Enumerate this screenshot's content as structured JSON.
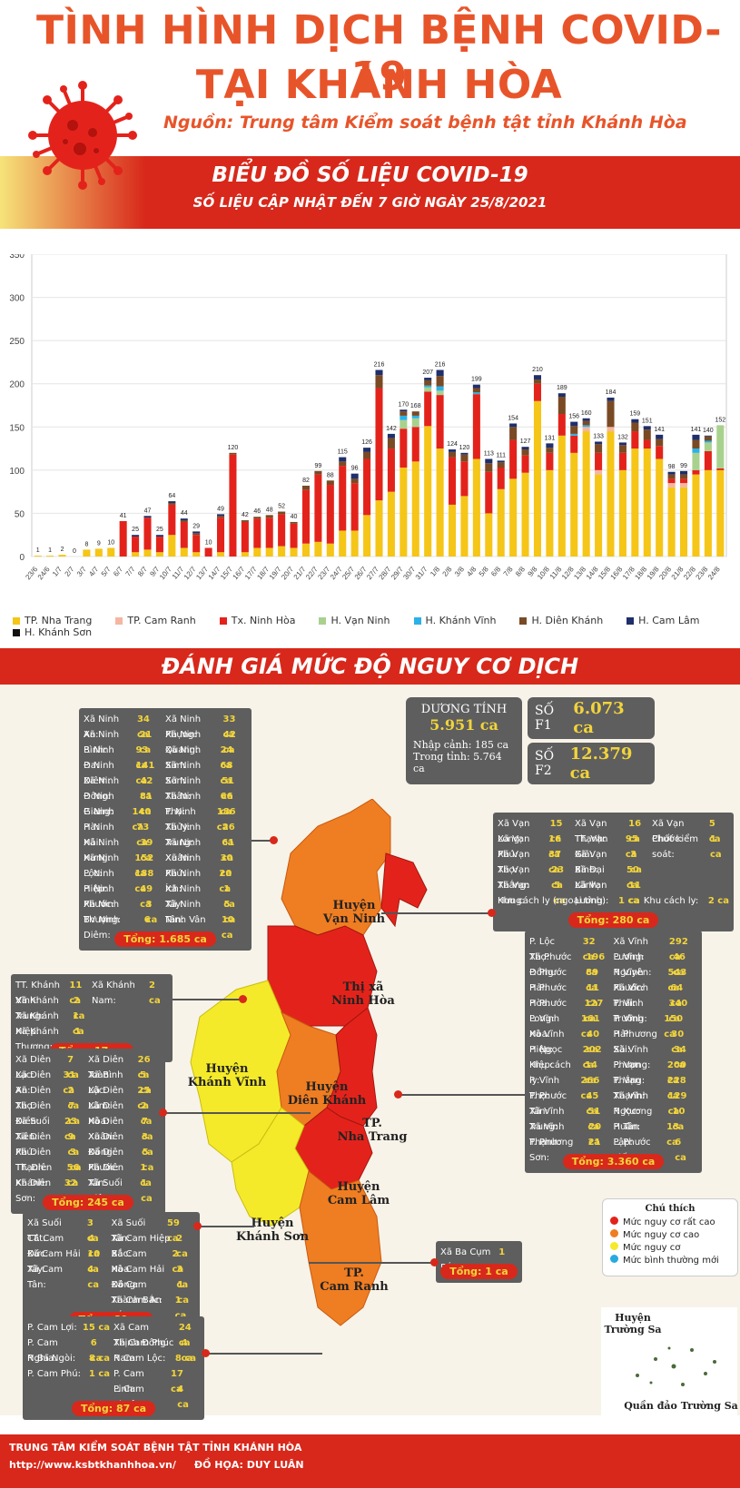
{
  "header": {
    "title_line1": "TÌNH HÌNH DỊCH BỆNH COVID-19",
    "title_line2": "TẠI KHÁNH HÒA",
    "source": "Nguồn: Trung tâm Kiểm soát bệnh tật tỉnh Khánh Hòa",
    "chart_title": "BIỂU ĐỒ SỐ LIỆU COVID-19",
    "chart_subtitle": "SỐ LIỆU CẬP NHẬT ĐẾN 7 GIỜ NGÀY 25/8/2021"
  },
  "colors": {
    "nha_trang": "#f5c518",
    "cam_ranh": "#f4b6a0",
    "ninh_hoa": "#e3231b",
    "van_ninh": "#a9d18e",
    "khanh_vinh": "#2ab1e8",
    "dien_khanh": "#7a4a24",
    "cam_lam": "#1f2f6b",
    "khanh_son": "#111111",
    "very_high": "#e3231b",
    "high": "#ef7d22",
    "risk": "#f4ea2a",
    "normal": "#2aa9e0"
  },
  "chart_data": {
    "type": "bar",
    "stacked": true,
    "ylim": [
      0,
      350
    ],
    "yticks": [
      0,
      50,
      100,
      150,
      200,
      250,
      300,
      350
    ],
    "grid": true,
    "legend_position": "bottom",
    "categories": [
      "23/6",
      "24/6",
      "1/7",
      "2/7",
      "3/7",
      "4/7",
      "5/7",
      "6/7",
      "7/7",
      "8/7",
      "9/7",
      "10/7",
      "11/7",
      "12/7",
      "13/7",
      "14/7",
      "15/7",
      "16/7",
      "17/7",
      "18/7",
      "19/7",
      "20/7",
      "21/7",
      "22/7",
      "23/7",
      "24/7",
      "25/7",
      "26/7",
      "27/7",
      "28/7",
      "29/7",
      "30/7",
      "31/7",
      "1/8",
      "2/8",
      "3/8",
      "4/8",
      "5/8",
      "6/8",
      "7/8",
      "8/8",
      "9/8",
      "10/8",
      "11/8",
      "12/8",
      "13/8",
      "14/8",
      "15/8",
      "16/8",
      "17/8",
      "18/8",
      "19/8",
      "20/8",
      "21/8",
      "22/8",
      "23/8",
      "24/8"
    ],
    "totals": [
      1,
      1,
      2,
      0,
      8,
      9,
      10,
      41,
      25,
      47,
      25,
      64,
      44,
      29,
      10,
      49,
      120,
      42,
      46,
      48,
      52,
      40,
      82,
      99,
      88,
      115,
      96,
      126,
      216,
      142,
      170,
      168,
      207,
      216,
      124,
      120,
      199,
      113,
      111,
      154,
      127,
      210,
      131,
      189,
      156,
      160,
      133,
      184,
      132,
      159,
      151,
      141,
      98,
      99,
      141,
      140,
      152
    ],
    "series": [
      {
        "name": "TP. Nha Trang",
        "values": [
          1,
          1,
          2,
          0,
          8,
          9,
          10,
          0,
          5,
          8,
          5,
          25,
          10,
          5,
          0,
          5,
          0,
          5,
          10,
          10,
          12,
          10,
          15,
          17,
          15,
          30,
          30,
          48,
          65,
          75,
          103,
          110,
          151,
          125,
          60,
          70,
          113,
          50,
          78,
          90,
          97,
          180,
          100,
          140,
          120,
          145,
          95,
          145,
          100,
          125,
          125,
          113,
          80,
          80,
          95,
          100,
          100
        ]
      },
      {
        "name": "TP. Cam Ranh",
        "values": [
          0,
          0,
          0,
          0,
          0,
          0,
          0,
          0,
          0,
          0,
          0,
          0,
          0,
          0,
          0,
          0,
          0,
          0,
          0,
          0,
          0,
          0,
          0,
          0,
          0,
          0,
          0,
          0,
          0,
          0,
          0,
          0,
          0,
          0,
          0,
          0,
          0,
          0,
          0,
          0,
          0,
          0,
          0,
          0,
          0,
          5,
          5,
          5,
          0,
          0,
          0,
          0,
          5,
          5,
          0,
          0,
          0
        ]
      },
      {
        "name": "Tx. Ninh Hòa",
        "values": [
          0,
          0,
          0,
          0,
          0,
          0,
          0,
          41,
          18,
          37,
          18,
          35,
          30,
          20,
          10,
          40,
          118,
          35,
          34,
          35,
          37,
          28,
          62,
          78,
          68,
          75,
          55,
          65,
          130,
          50,
          45,
          40,
          40,
          62,
          55,
          40,
          75,
          48,
          25,
          45,
          20,
          20,
          20,
          25,
          20,
          0,
          20,
          0,
          20,
          20,
          10,
          15,
          5,
          5,
          5,
          22,
          2
        ]
      },
      {
        "name": "H. Vạn Ninh",
        "values": [
          0,
          0,
          0,
          0,
          0,
          0,
          0,
          0,
          0,
          0,
          0,
          0,
          0,
          0,
          0,
          0,
          0,
          0,
          0,
          0,
          0,
          0,
          0,
          0,
          0,
          0,
          0,
          0,
          0,
          0,
          10,
          10,
          5,
          5,
          0,
          0,
          0,
          0,
          0,
          0,
          0,
          0,
          0,
          0,
          0,
          0,
          0,
          0,
          0,
          0,
          0,
          0,
          0,
          0,
          20,
          10,
          50
        ]
      },
      {
        "name": "H. Khánh Vĩnh",
        "values": [
          0,
          0,
          0,
          0,
          0,
          0,
          0,
          0,
          0,
          0,
          0,
          0,
          0,
          0,
          0,
          0,
          0,
          0,
          0,
          0,
          0,
          0,
          0,
          0,
          0,
          0,
          0,
          0,
          0,
          0,
          5,
          3,
          2,
          5,
          0,
          0,
          2,
          0,
          0,
          0,
          0,
          0,
          0,
          0,
          2,
          2,
          0,
          0,
          0,
          0,
          0,
          0,
          0,
          0,
          5,
          2,
          0
        ]
      },
      {
        "name": "H. Diên Khánh",
        "values": [
          0,
          0,
          0,
          0,
          0,
          0,
          0,
          0,
          0,
          0,
          0,
          2,
          2,
          2,
          0,
          2,
          2,
          2,
          2,
          3,
          3,
          2,
          5,
          4,
          5,
          5,
          5,
          8,
          15,
          12,
          5,
          5,
          6,
          12,
          6,
          8,
          5,
          10,
          6,
          15,
          7,
          5,
          6,
          20,
          9,
          5,
          10,
          30,
          9,
          10,
          12,
          8,
          5,
          5,
          10,
          5,
          0
        ]
      },
      {
        "name": "H. Cam Lâm",
        "values": [
          0,
          0,
          0,
          0,
          0,
          0,
          0,
          0,
          2,
          2,
          2,
          2,
          2,
          2,
          0,
          2,
          0,
          0,
          0,
          0,
          0,
          0,
          0,
          0,
          0,
          5,
          6,
          5,
          6,
          5,
          2,
          0,
          3,
          7,
          3,
          2,
          4,
          5,
          2,
          4,
          3,
          5,
          5,
          4,
          5,
          3,
          3,
          4,
          3,
          4,
          4,
          5,
          3,
          4,
          6,
          1,
          0
        ]
      },
      {
        "name": "H. Khánh Sơn",
        "values": [
          0,
          0,
          0,
          0,
          0,
          0,
          0,
          0,
          0,
          0,
          0,
          0,
          0,
          0,
          0,
          0,
          0,
          0,
          0,
          0,
          0,
          0,
          0,
          0,
          0,
          0,
          0,
          0,
          0,
          0,
          0,
          0,
          0,
          0,
          0,
          0,
          0,
          0,
          0,
          0,
          0,
          0,
          0,
          0,
          0,
          0,
          0,
          0,
          0,
          0,
          0,
          0,
          0,
          0,
          0,
          0,
          0
        ]
      }
    ]
  },
  "risk": {
    "title": "ĐÁNH GIÁ MỨC ĐỘ NGUY CƠ DỊCH",
    "positive_label": "DƯƠNG TÍNH",
    "positive_value": "5.951 ca",
    "import_label": "Nhập cảnh: 185 ca",
    "domestic_label": "Trong tỉnh: 5.764 ca",
    "f1_label": "SỐ F1",
    "f1_value": "6.073 ca",
    "f2_label": "SỐ F2",
    "f2_value": "12.379 ca"
  },
  "boxes": {
    "ninh_hoa": {
      "rows": [
        [
          "Xã Ninh An:",
          "34 ca",
          "Xã Ninh Phụng:",
          "33 ca"
        ],
        [
          "Xã Ninh Bình:",
          "21 ca",
          "Xã Ninh Quang:",
          "42 ca"
        ],
        [
          "P. Ninh Đa:",
          "93 ca",
          "Xã Ninh Sim:",
          "24 ca"
        ],
        [
          "P. Ninh Diêm:",
          "141 ca",
          "Xã Ninh Sơn:",
          "68 ca"
        ],
        [
          "Xã Ninh Đông:",
          "42 ca",
          "Xã Ninh Thân:",
          "51 ca"
        ],
        [
          "P. Ninh Giang:",
          "81 ca",
          "Xã Ninh Thọ:",
          "66 ca"
        ],
        [
          "P. Ninh Hà:",
          "140 ca",
          "P. Ninh Thủy:",
          "186 ca"
        ],
        [
          "P. Ninh Hải:",
          "73 ca",
          "Xã Ninh Trung:",
          "26 ca"
        ],
        [
          "Xã Ninh Hưng:",
          "39 ca",
          "Xã Ninh Xuân:",
          "61 ca"
        ],
        [
          "Xã Ninh Lộc:",
          "152 ca",
          "Xã Ninh Phú:",
          "30 ca"
        ],
        [
          "P. Ninh Hiệp:",
          "188 ca",
          "Xã Ninh Ích:",
          "20 ca"
        ],
        [
          "P. Ninh Phước:",
          "49 ca",
          "Xã Ninh Tây:",
          "1 ca"
        ],
        [
          "Xã Ninh Thượng:",
          "3 ca",
          "Xã Ninh Tân:",
          "5 ca"
        ],
        [
          "BV Ninh Diêm:",
          "6 ca",
          "Ninh Vân Bay:",
          "10 ca"
        ]
      ],
      "total": "Tổng: 1.685 ca"
    },
    "van_ninh": {
      "rows": [
        [
          "Xã Vạn Long:",
          "15 ca",
          "Xã Vạn Thạnh:",
          "16 ca",
          "Xã Vạn Phước:",
          "5 ca"
        ],
        [
          "Xã Vạn Phú:",
          "16 ca",
          "TT. Vạn Giã:",
          "95 ca",
          "Chốt kiểm soát:",
          "1 ca"
        ],
        [
          "Xã Vạn Thọ:",
          "37 ca",
          "Xã Vạn Bình:",
          "3 ca",
          "",
          ""
        ],
        [
          "Xã Vạn Thắng:",
          "23 ca",
          "Xã Đại Lãnh:",
          "50 ca",
          "",
          ""
        ],
        [
          "Xã Vạn Hưng:",
          "5 ca",
          "Xã Vạn Lương:",
          "11 ca",
          "",
          ""
        ]
      ],
      "extra_label1": "Khu cách ly (ngoại tỉnh):",
      "extra_value1": "1 ca",
      "extra_label2": "Khu cách ly:",
      "extra_value2": "2 ca",
      "total": "Tổng: 280 ca"
    },
    "khanh_vinh": {
      "rows": [
        [
          "TT. Khánh Vĩnh:",
          "11 ca",
          "Xã Khánh Nam:",
          "2 ca"
        ],
        [
          "Xã Khánh Trung:",
          "2 ca",
          "",
          ""
        ],
        [
          "Xã Khánh Hiệp:",
          "1 ca",
          "",
          ""
        ],
        [
          "Xã Khánh Thượng:",
          "1 ca",
          "",
          ""
        ]
      ],
      "total": "Tổng: 17 ca"
    },
    "nha_trang": {
      "rows": [
        [
          "P. Lộc Thọ:",
          "32 ca",
          "Xã Vĩnh Lương:",
          "292 ca"
        ],
        [
          "Xã Phước Đồng:",
          "196 ca",
          "P. Vĩnh Nguyên:",
          "46 ca"
        ],
        [
          "P. Phước Hải:",
          "89 ca",
          "P. Vĩnh Phước:",
          "543 ca"
        ],
        [
          "P. Phước Hòa:",
          "11 ca",
          "Xã Vĩnh Thái:",
          "64 ca"
        ],
        [
          "P. Phước Long:",
          "127 ca",
          "P. Vĩnh Trường:",
          "340 ca"
        ],
        [
          "P. Vĩnh Hòa:",
          "161 ca",
          "P. Vĩnh Hải:",
          "150 ca"
        ],
        [
          "Xã Vĩnh Hiệp:",
          "40 ca",
          "P. Phương Sài:",
          "30 ca"
        ],
        [
          "P. Ngọc Hiệp:",
          "202 ca",
          "Xã Vĩnh Phương:",
          "34 ca"
        ],
        [
          "Khu cách ly:",
          "14 ca",
          "P. Vạn Thắng:",
          "200 ca"
        ],
        [
          "P. Vĩnh Thọ:",
          "266 ca",
          "P. Vạn Thạnh:",
          "228 ca"
        ],
        [
          "P. Phước Tân:",
          "45 ca",
          "Xã Vĩnh Ngọc:",
          "129 ca"
        ],
        [
          "Xã Vĩnh Trung:",
          "51 ca",
          "P. Xương Huân:",
          "10 ca"
        ],
        [
          "Xã Vĩnh Thạnh:",
          "20 ca",
          "P. Tân Lập:",
          "13 ca"
        ],
        [
          "P. Phương Sơn:",
          "21 ca",
          "P. Phước Tiến:",
          "6 ca"
        ]
      ],
      "total": "Tổng: 3.360 ca"
    },
    "dien_khanh": {
      "rows": [
        [
          "Xã Diên Lạc:",
          "7 ca",
          "Xã Diên Toàn:",
          "26 ca"
        ],
        [
          "Xã Diên An:",
          "31 ca",
          "Xã Bình Lộc:",
          "5 ca"
        ],
        [
          "Xã Diên Thọ:",
          "2 ca",
          "Xã Diên Lâm:",
          "25 ca"
        ],
        [
          "Xã Diên Điền:",
          "7 ca",
          "Xã Diên Hòa:",
          "2 ca"
        ],
        [
          "Xã Suối Tiên:",
          "23 ca",
          "Xã Diên Xuân:",
          "7 ca"
        ],
        [
          "Xã Diên Phú:",
          "9 ca",
          "Xã Diên Đồng:",
          "3 ca"
        ],
        [
          "Xã Diên Thạnh:",
          "3 ca",
          "Xã Diên Phước:",
          "5 ca"
        ],
        [
          "TT. Diên Khánh:",
          "56 ca",
          "Xã Diên Tân:",
          "1 ca"
        ],
        [
          "Xã Diên Sơn:",
          "32 ca",
          "Xã Suối Hiệp:",
          "1 ca"
        ]
      ],
      "total": "Tổng: 245 ca"
    },
    "cam_lam": {
      "rows": [
        [
          "Xã Suối Cát:",
          "3 ca",
          "Xã Suối Tân:",
          "59 ca"
        ],
        [
          "TT. Cam Đức:",
          "4 ca",
          "Xã Cam Hiệp Bắc:",
          "2 ca"
        ],
        [
          "Xã Cam Hải Tây:",
          "10 ca",
          "Xã Cam Hòa:",
          "2 ca"
        ],
        [
          "Xã Cam Tân:",
          "4 ca",
          "Xã Cam Hải Đông:",
          "3 ca"
        ],
        [
          "",
          "",
          "Xã Cam Thành Bắc:",
          "1 ca"
        ],
        [
          "",
          "",
          "Xã Cam An Bắc:",
          "1 ca"
        ]
      ],
      "total": "Tổng: 89 ca"
    },
    "khanh_son": {
      "rows": [
        [
          "Xã Ba Cụm Bắc:",
          "1 ca"
        ]
      ],
      "total": "Tổng: 1 ca"
    },
    "cam_ranh": {
      "rows": [
        [
          "P. Cam Lợi:",
          "15 ca",
          "Xã Cam Thịnh Đông:",
          "24 ca"
        ],
        [
          "P. Cam Nghĩa:",
          "6 ca",
          "Xã Cam Phúc Nam:",
          "4 ca"
        ],
        [
          "P. Ba Ngòi:",
          "8 ca",
          "P. Cam Lộc:",
          "8 ca"
        ],
        [
          "P. Cam Phú:",
          "1 ca",
          "P. Cam Linh:",
          "17 ca"
        ],
        [
          "",
          "",
          "P. Cam Thuận:",
          "4 ca"
        ]
      ],
      "total": "Tổng: 87 ca"
    }
  },
  "map_labels": {
    "van_ninh": [
      "Huyện",
      "Vạn Ninh"
    ],
    "ninh_hoa": [
      "Thị xã",
      "Ninh Hòa"
    ],
    "khanh_vinh": [
      "Huyện",
      "Khánh Vĩnh"
    ],
    "dien_khanh": [
      "Huyện",
      "Diên Khánh"
    ],
    "nha_trang": [
      "TP.",
      "Nha Trang"
    ],
    "cam_lam": [
      "Huyện",
      "Cam Lâm"
    ],
    "khanh_son": [
      "Huyện",
      "Khánh Sơn"
    ],
    "cam_ranh": [
      "TP.",
      "Cam Ranh"
    ],
    "truong_sa_top": [
      "Huyện",
      "Trường Sa"
    ],
    "truong_sa_bottom": "Quần đảo Trường Sa"
  },
  "map_legend": {
    "title": "Chú thích",
    "very_high": "Mức nguy cơ rất cao",
    "high": "Mức nguy cơ cao",
    "risk": "Mức nguy cơ",
    "normal": "Mức bình thường mới"
  },
  "footer": {
    "org": "TRUNG TÂM KIỂM SOÁT BỆNH TẬT TỈNH KHÁNH HÒA",
    "url": "http://www.ksbtkhanhhoa.vn/",
    "credit": "ĐỒ HỌA: DUY LUÂN"
  }
}
